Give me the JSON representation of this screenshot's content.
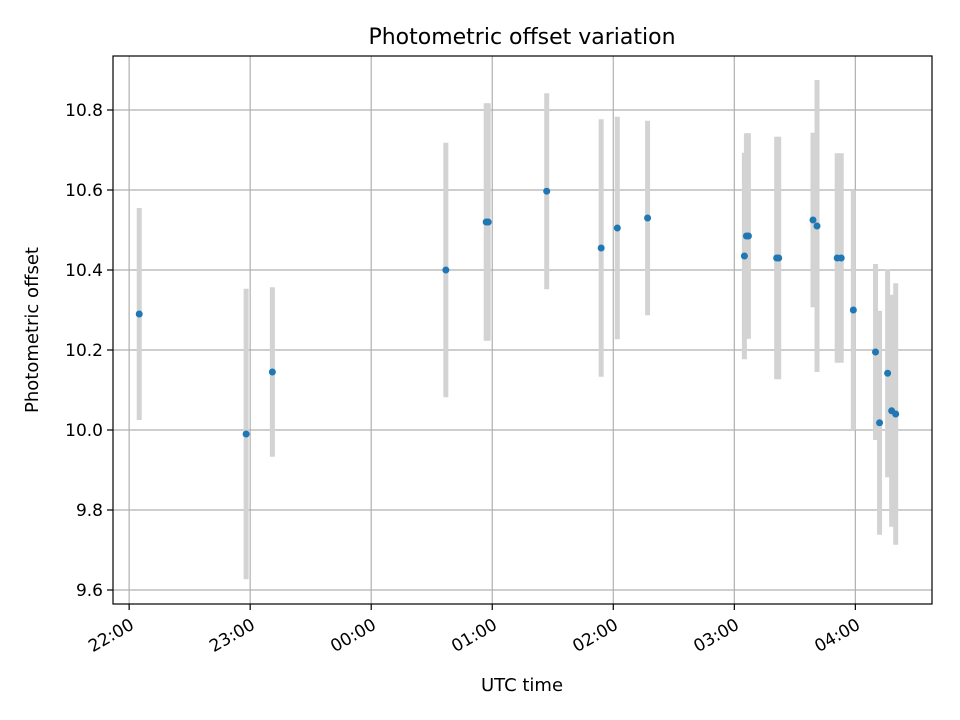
{
  "chart_data": {
    "type": "scatter",
    "title": "Photometric offset variation",
    "xlabel": "UTC time",
    "ylabel": "Photometric offset",
    "x_unit": "UTC time of day (dates crossing midnight)",
    "xlim": [
      "21:52",
      "04:38"
    ],
    "ylim": [
      9.565,
      10.935
    ],
    "xticks": [
      "22:00",
      "23:00",
      "00:00",
      "01:00",
      "02:00",
      "03:00",
      "04:00"
    ],
    "yticks": [
      "9.6",
      "9.8",
      "10.0",
      "10.2",
      "10.4",
      "10.6",
      "10.8"
    ],
    "grid": true,
    "colors": {
      "points": "#1f77b4",
      "errorbars": "#d3d3d3",
      "grid": "#b0b0b0"
    },
    "points": [
      {
        "x": "22:05",
        "y": 10.29,
        "yerr": 0.265
      },
      {
        "x": "22:58",
        "y": 9.99,
        "yerr": 0.363
      },
      {
        "x": "23:11",
        "y": 10.145,
        "yerr": 0.212
      },
      {
        "x": "00:37",
        "y": 10.4,
        "yerr": 0.318
      },
      {
        "x": "00:57",
        "y": 10.52,
        "yerr": 0.297
      },
      {
        "x": "00:58",
        "y": 10.52,
        "yerr": 0.297
      },
      {
        "x": "01:27",
        "y": 10.597,
        "yerr": 0.245
      },
      {
        "x": "01:54",
        "y": 10.455,
        "yerr": 0.322
      },
      {
        "x": "02:02",
        "y": 10.505,
        "yerr": 0.278
      },
      {
        "x": "02:17",
        "y": 10.53,
        "yerr": 0.243
      },
      {
        "x": "03:05",
        "y": 10.435,
        "yerr": 0.258
      },
      {
        "x": "03:06",
        "y": 10.485,
        "yerr": 0.257
      },
      {
        "x": "03:07",
        "y": 10.485,
        "yerr": 0.257
      },
      {
        "x": "03:21",
        "y": 10.43,
        "yerr": 0.303
      },
      {
        "x": "03:22",
        "y": 10.43,
        "yerr": 0.303
      },
      {
        "x": "03:39",
        "y": 10.525,
        "yerr": 0.218
      },
      {
        "x": "03:41",
        "y": 10.51,
        "yerr": 0.365
      },
      {
        "x": "03:51",
        "y": 10.43,
        "yerr": 0.262
      },
      {
        "x": "03:53",
        "y": 10.43,
        "yerr": 0.262
      },
      {
        "x": "03:59",
        "y": 10.3,
        "yerr": 0.3
      },
      {
        "x": "04:10",
        "y": 10.195,
        "yerr": 0.22
      },
      {
        "x": "04:12",
        "y": 10.018,
        "yerr": 0.28
      },
      {
        "x": "04:16",
        "y": 10.142,
        "yerr": 0.26
      },
      {
        "x": "04:18",
        "y": 10.048,
        "yerr": 0.29
      },
      {
        "x": "04:20",
        "y": 10.04,
        "yerr": 0.327
      }
    ]
  }
}
